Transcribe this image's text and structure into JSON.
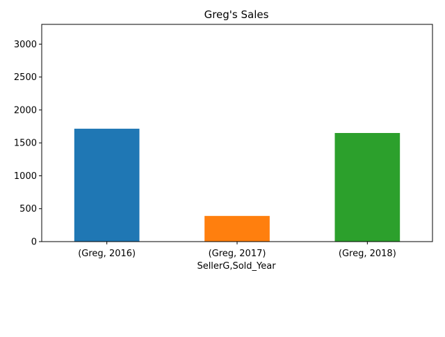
{
  "chart_data": {
    "type": "bar",
    "title": "Greg's Sales",
    "xlabel": "SellerG,Sold_Year",
    "ylabel": "",
    "categories": [
      "(Greg, 2016)",
      "(Greg, 2017)",
      "(Greg, 2018)"
    ],
    "values": [
      1715,
      390,
      1650
    ],
    "colors": [
      "#1f77b4",
      "#ff7f0e",
      "#2ca02c"
    ],
    "ylim": [
      0,
      3300
    ],
    "yticks": [
      0,
      500,
      1000,
      1500,
      2000,
      2500,
      3000
    ],
    "grid": false,
    "legend": "none"
  }
}
